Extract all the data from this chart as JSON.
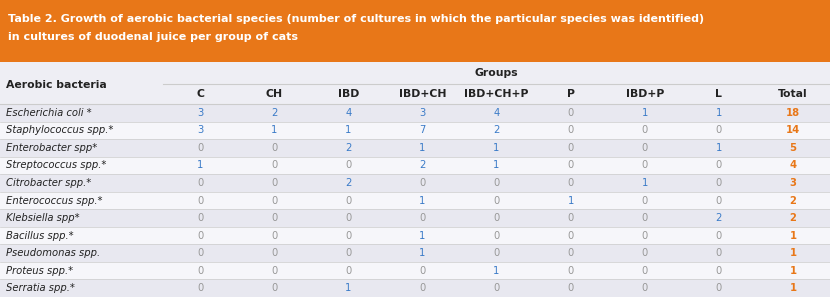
{
  "title_line1": "Table 2. Growth of aerobic bacterial species (number of cultures in which the particular species was identified)",
  "title_line2": "in cultures of duodenal juice per group of cats",
  "header_groups": "Groups",
  "col_label": "Aerobic bacteria",
  "columns": [
    "C",
    "CH",
    "IBD",
    "IBD+CH",
    "IBD+CH+P",
    "P",
    "IBD+P",
    "L",
    "Total"
  ],
  "rows": [
    {
      "name": "Escherichia coli *",
      "values": [
        3,
        2,
        4,
        3,
        4,
        0,
        1,
        1,
        18
      ]
    },
    {
      "name": "Staphylococcus spp.*",
      "values": [
        3,
        1,
        1,
        7,
        2,
        0,
        0,
        0,
        14
      ]
    },
    {
      "name": "Enterobacter spp*",
      "values": [
        0,
        0,
        2,
        1,
        1,
        0,
        0,
        1,
        5
      ]
    },
    {
      "name": "Streptococcus spp.*",
      "values": [
        1,
        0,
        0,
        2,
        1,
        0,
        0,
        0,
        4
      ]
    },
    {
      "name": "Citrobacter spp.*",
      "values": [
        0,
        0,
        2,
        0,
        0,
        0,
        1,
        0,
        3
      ]
    },
    {
      "name": "Enterococcus spp.*",
      "values": [
        0,
        0,
        0,
        1,
        0,
        1,
        0,
        0,
        2
      ]
    },
    {
      "name": "Klebsiella spp*",
      "values": [
        0,
        0,
        0,
        0,
        0,
        0,
        0,
        2,
        2
      ]
    },
    {
      "name": "Bacillus spp.*",
      "values": [
        0,
        0,
        0,
        1,
        0,
        0,
        0,
        0,
        1
      ]
    },
    {
      "name": "Pseudomonas spp.",
      "values": [
        0,
        0,
        0,
        1,
        0,
        0,
        0,
        0,
        1
      ]
    },
    {
      "name": "Proteus spp.*",
      "values": [
        0,
        0,
        0,
        0,
        1,
        0,
        0,
        0,
        1
      ]
    },
    {
      "name": "Serratia spp.*",
      "values": [
        0,
        0,
        1,
        0,
        0,
        0,
        0,
        0,
        1
      ]
    }
  ],
  "title_bg": "#E87718",
  "title_fg": "#FFFFFF",
  "table_bg": "#EEEEF4",
  "row_bg_odd": "#E8E8F0",
  "row_bg_even": "#F6F6FA",
  "header_area_bg": "#EEEEF4",
  "col_name_fg": "#222222",
  "zero_color": "#999999",
  "nonzero_color": "#3B7BC8",
  "orange_color": "#E87718",
  "groups_label_color": "#222222",
  "line_color": "#CCCCCC",
  "title_font_size": 8.0,
  "header_font_size": 7.8,
  "data_font_size": 7.2
}
